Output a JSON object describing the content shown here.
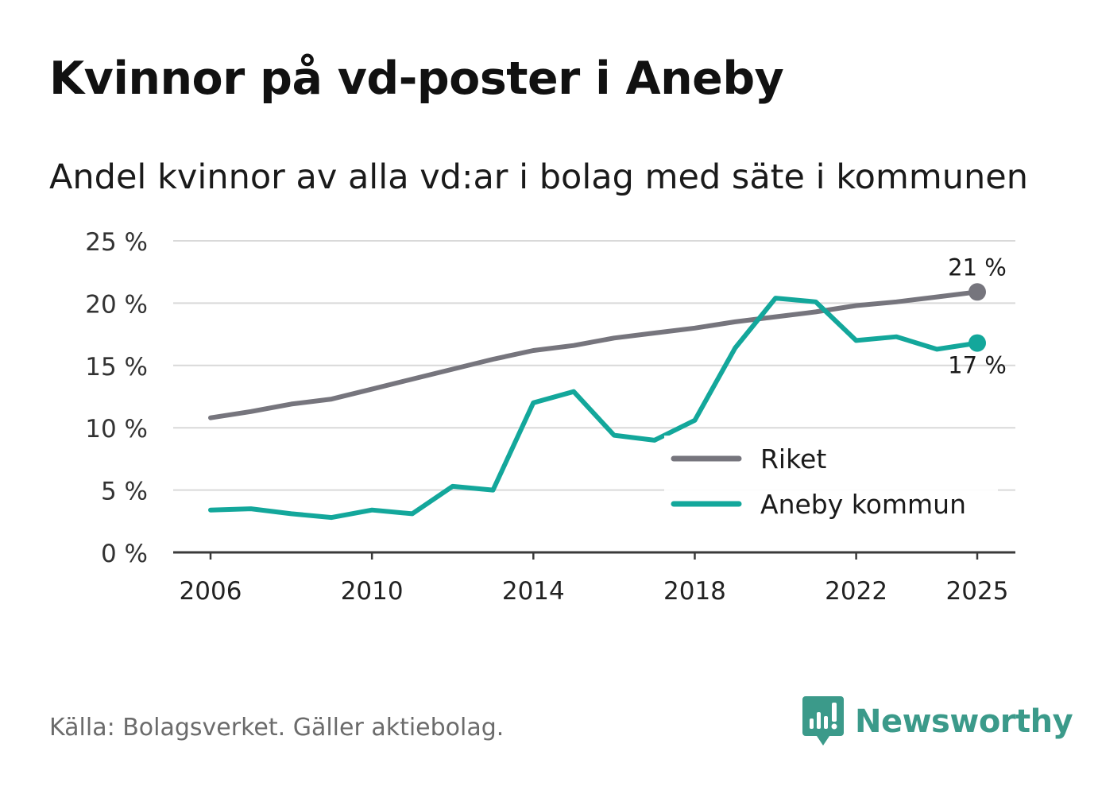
{
  "title": "Kvinnor på vd-poster i Aneby",
  "subtitle": "Andel kvinnor av alla vd:ar i bolag med säte i kommunen",
  "source": "Källa: Bolagsverket. Gäller aktiebolag.",
  "brand": {
    "name": "Newsworthy",
    "icon": "newsworthy-logo-icon"
  },
  "colors": {
    "riket": "#76757d",
    "kommun": "#13a79b",
    "grid": "#d9d9d9",
    "axis": "#3a3a3a",
    "brand": "#3b9a8a"
  },
  "chart_data": {
    "type": "line",
    "title": "Kvinnor på vd-poster i Aneby",
    "subtitle": "Andel kvinnor av alla vd:ar i bolag med säte i kommunen",
    "xlabel": "",
    "ylabel": "",
    "xlim": [
      2006,
      2025
    ],
    "ylim": [
      0,
      25
    ],
    "x_ticks": [
      2006,
      2010,
      2014,
      2018,
      2022,
      2025
    ],
    "y_ticks": [
      0,
      5,
      10,
      15,
      20,
      25
    ],
    "y_tick_labels": [
      "0 %",
      "5 %",
      "10 %",
      "15 %",
      "20 %",
      "25 %"
    ],
    "grid": true,
    "legend_position": "bottom-right",
    "x": [
      2006,
      2007,
      2008,
      2009,
      2010,
      2011,
      2012,
      2013,
      2014,
      2015,
      2016,
      2017,
      2018,
      2019,
      2020,
      2021,
      2022,
      2023,
      2024,
      2025
    ],
    "series": [
      {
        "name": "Riket",
        "color": "#76757d",
        "values": [
          10.8,
          11.3,
          11.9,
          12.3,
          13.1,
          13.9,
          14.7,
          15.5,
          16.2,
          16.6,
          17.2,
          17.6,
          18.0,
          18.5,
          18.9,
          19.3,
          19.8,
          20.1,
          20.5,
          20.9
        ],
        "end_label": "21 %"
      },
      {
        "name": "Aneby kommun",
        "color": "#13a79b",
        "values": [
          3.4,
          3.5,
          3.1,
          2.8,
          3.4,
          3.1,
          5.3,
          5.0,
          12.0,
          12.9,
          9.4,
          9.0,
          10.6,
          16.4,
          20.4,
          20.1,
          17.0,
          17.3,
          16.3,
          16.8
        ],
        "end_label": "17 %"
      }
    ]
  }
}
